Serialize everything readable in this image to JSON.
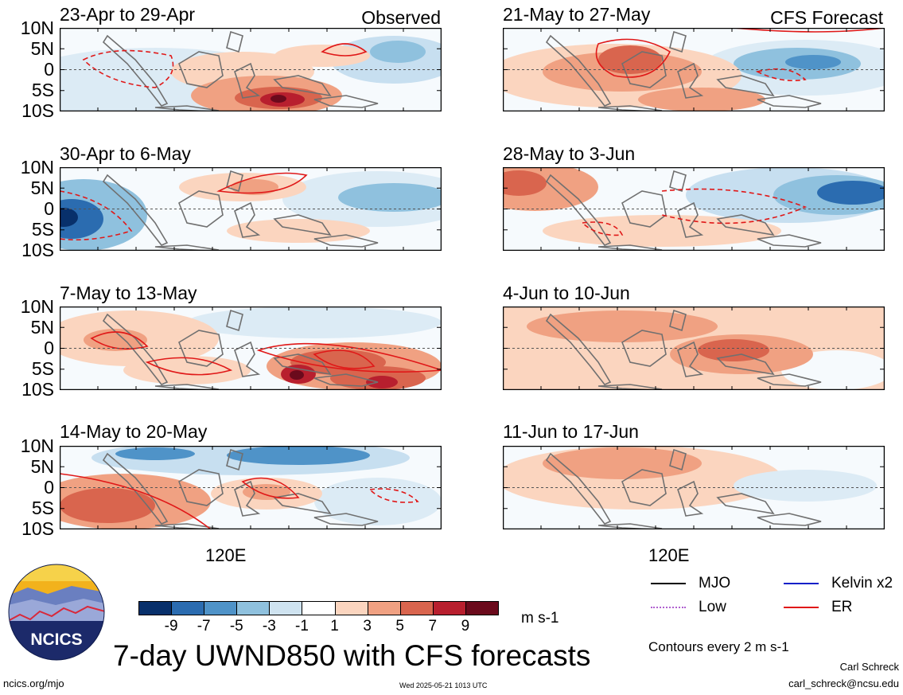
{
  "colors": {
    "er_contour": "#e01818",
    "coast": "#707070",
    "logo_bg": "#1c2a6a"
  },
  "labels": {
    "observed": "Observed",
    "forecast": "CFS Forecast",
    "lon_tick": "120E",
    "units": "m s-1",
    "main_title": "7-day UWND850 with CFS forecasts",
    "contours_note": "Contours every 2 m s-1",
    "logo_text": "NCICS",
    "url": "ncics.org/mjo",
    "timestamp": "Wed 2025-05-21 1013 UTC",
    "author": "Carl Schreck",
    "email": "carl_schreck@ncsu.edu"
  },
  "legend": [
    {
      "name": "MJO",
      "color": "#000000",
      "icon": "solid-line"
    },
    {
      "name": "Kelvin x2",
      "color": "#1020c8",
      "icon": "solid-line"
    },
    {
      "name": "Low",
      "color": "#b060d0",
      "icon": "dotted-line"
    },
    {
      "name": "ER",
      "color": "#e01818",
      "icon": "solid-line"
    }
  ],
  "chart_data": {
    "type": "heatmap",
    "title": "7-day UWND850 with CFS forecasts",
    "variable": "850-hPa zonal wind anomaly",
    "units": "m s-1",
    "colorbar": {
      "ticks": [
        "-9",
        "-7",
        "-5",
        "-3",
        "-1",
        "1",
        "3",
        "5",
        "7",
        "9"
      ],
      "colors": [
        "#08306b",
        "#2b6cb0",
        "#4f93c8",
        "#8fc1de",
        "#cfe3f0",
        "#ffffff",
        "#fbd5bf",
        "#f0a182",
        "#d9654e",
        "#b81f2e",
        "#6b0a1c"
      ]
    },
    "lat_ticks": [
      "10N",
      "5N",
      "0",
      "5S",
      "10S"
    ],
    "lon_ticks": [
      "120E"
    ],
    "columns": [
      {
        "label": "Observed",
        "panels": [
          "23-Apr to 29-Apr",
          "30-Apr to 6-May",
          "7-May to 13-May",
          "14-May to 20-May"
        ]
      },
      {
        "label": "CFS Forecast",
        "panels": [
          "21-May to 27-May",
          "28-May to 3-Jun",
          "4-Jun to 10-Jun",
          "11-Jun to 17-Jun"
        ]
      }
    ]
  }
}
